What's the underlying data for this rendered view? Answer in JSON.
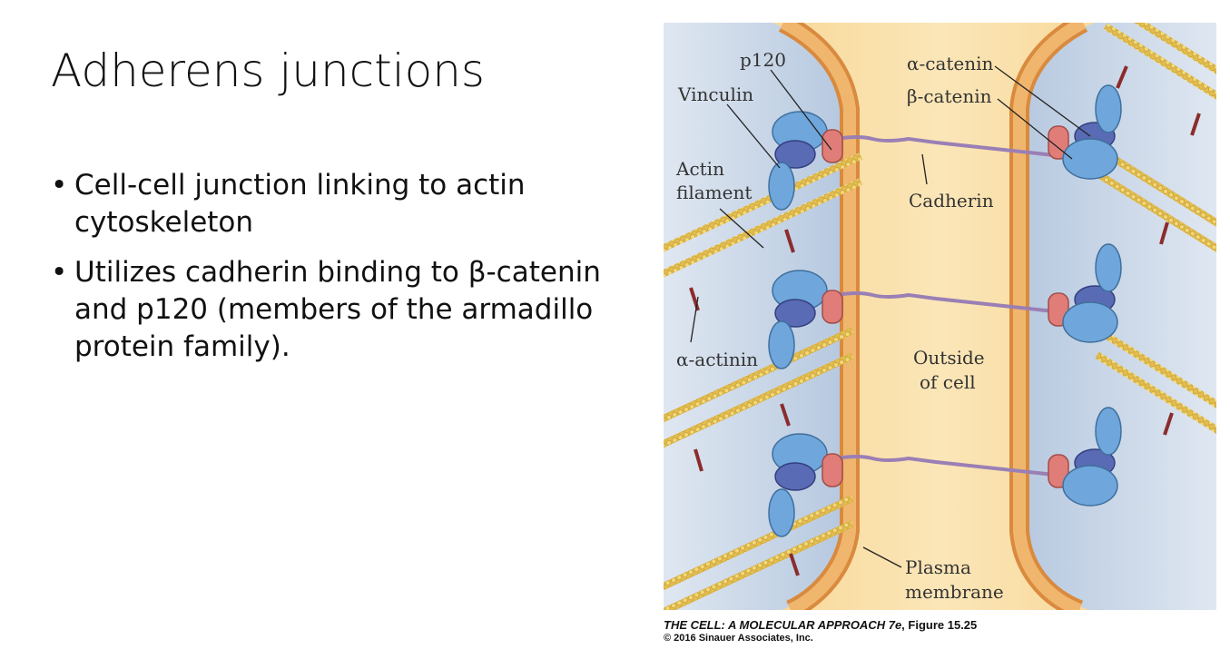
{
  "slide": {
    "title": "Adherens junctions",
    "bullets": [
      "Cell-cell junction linking to actin cytoskeleton",
      "Utilizes cadherin binding to β-catenin and p120 (members of the armadillo protein family)."
    ]
  },
  "figure": {
    "labels": {
      "p120": "p120",
      "vinculin": "Vinculin",
      "actin_1": "Actin",
      "actin_2": "filament",
      "alpha_actinin": "α-actinin",
      "alpha_catenin": "α-catenin",
      "beta_catenin": "β-catenin",
      "cadherin": "Cadherin",
      "outside_1": "Outside",
      "outside_2": "of cell",
      "plasma_1": "Plasma",
      "plasma_2": "membrane"
    },
    "credit_title": "THE CELL: A MOLECULAR APPROACH 7e",
    "credit_figure": ", Figure 15.25",
    "copyright": "© 2016 Sinauer Associates, Inc."
  },
  "colors": {
    "cytoplasm": "#c9d7e8",
    "extracellular": "#f8d89a",
    "membrane": "#e8a45c",
    "actin": "#e6c35a",
    "protein_blue": "#6fa6dc",
    "protein_dark": "#5a6bb5",
    "p120": "#e07d78",
    "cadherin": "#9a7fb5"
  }
}
